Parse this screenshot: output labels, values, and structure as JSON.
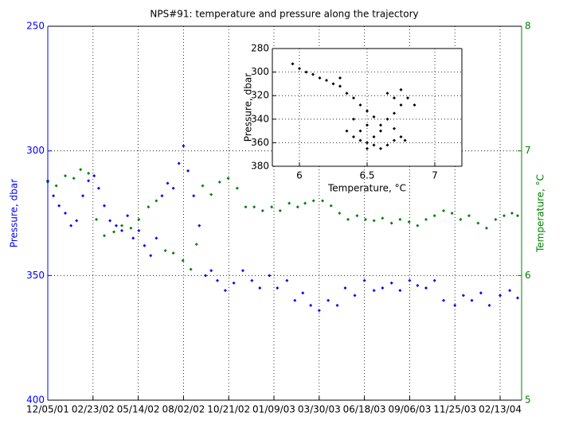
{
  "chart_data": [
    {
      "type": "scatter",
      "title": "NPS#91: temperature and pressure along the trajectory",
      "xlim": [
        "2001-12-05",
        "2004-03-22"
      ],
      "xticks": [
        {
          "value": "2001-12-05",
          "label": "12/05/01"
        },
        {
          "value": "2002-02-23",
          "label": "02/23/02"
        },
        {
          "value": "2002-05-14",
          "label": "05/14/02"
        },
        {
          "value": "2002-08-02",
          "label": "08/02/02"
        },
        {
          "value": "2002-10-21",
          "label": "10/21/02"
        },
        {
          "value": "2003-01-09",
          "label": "01/09/03"
        },
        {
          "value": "2003-03-30",
          "label": "03/30/03"
        },
        {
          "value": "2003-06-18",
          "label": "06/18/03"
        },
        {
          "value": "2003-09-06",
          "label": "09/06/03"
        },
        {
          "value": "2003-11-25",
          "label": "11/25/03"
        },
        {
          "value": "2004-02-13",
          "label": "02/13/04"
        }
      ],
      "ylabel": "Pressure, dbar",
      "ylim": [
        250,
        400
      ],
      "yticks": [
        250,
        300,
        350,
        400
      ],
      "yreverse": true,
      "ycolor": "#0000ff",
      "y2label": "Temperature, °C",
      "y2lim": [
        5,
        8
      ],
      "y2ticks": [
        5,
        6,
        7,
        8
      ],
      "y2color": "#008000",
      "grid": true,
      "series": [
        {
          "color": "#0000ff",
          "x": [
            "2001-12-05",
            "2001-12-15",
            "2001-12-25",
            "2002-01-05",
            "2002-01-15",
            "2002-01-25",
            "2002-02-05",
            "2002-02-15",
            "2002-02-25",
            "2002-03-05",
            "2002-03-15",
            "2002-03-25",
            "2002-04-05",
            "2002-04-15",
            "2002-04-25",
            "2002-05-05",
            "2002-05-15",
            "2002-05-25",
            "2002-06-05",
            "2002-06-15",
            "2002-06-25",
            "2002-07-05",
            "2002-07-15",
            "2002-07-25",
            "2002-08-02",
            "2002-08-10",
            "2002-08-20",
            "2002-08-30",
            "2002-09-10",
            "2002-09-20",
            "2002-10-01",
            "2002-10-15",
            "2002-10-30",
            "2002-11-15",
            "2002-12-01",
            "2002-12-15",
            "2003-01-01",
            "2003-01-15",
            "2003-02-01",
            "2003-02-15",
            "2003-03-01",
            "2003-03-15",
            "2003-03-30",
            "2003-04-15",
            "2003-05-01",
            "2003-05-15",
            "2003-06-01",
            "2003-06-18",
            "2003-07-05",
            "2003-07-20",
            "2003-08-05",
            "2003-08-20",
            "2003-09-06",
            "2003-09-20",
            "2003-10-05",
            "2003-10-20",
            "2003-11-05",
            "2003-11-25",
            "2003-12-10",
            "2003-12-25",
            "2004-01-10",
            "2004-01-25",
            "2004-02-13",
            "2004-03-01",
            "2004-03-15"
          ],
          "values": [
            312,
            318,
            322,
            325,
            330,
            328,
            318,
            312,
            310,
            315,
            322,
            328,
            330,
            332,
            326,
            335,
            332,
            338,
            342,
            335,
            318,
            313,
            315,
            305,
            298,
            308,
            318,
            330,
            350,
            348,
            352,
            356,
            353,
            348,
            352,
            355,
            350,
            355,
            352,
            360,
            357,
            362,
            364,
            360,
            362,
            355,
            358,
            352,
            356,
            355,
            353,
            356,
            352,
            354,
            355,
            352,
            360,
            362,
            358,
            360,
            357,
            362,
            358,
            356,
            359
          ]
        },
        {
          "color": "#008000",
          "axis": "y2",
          "x": [
            "2001-12-05",
            "2001-12-20",
            "2002-01-05",
            "2002-01-20",
            "2002-02-01",
            "2002-02-15",
            "2002-03-01",
            "2002-03-15",
            "2002-04-01",
            "2002-04-15",
            "2002-05-01",
            "2002-05-15",
            "2002-06-01",
            "2002-06-15",
            "2002-07-01",
            "2002-07-15",
            "2002-08-01",
            "2002-08-15",
            "2002-08-25",
            "2002-09-05",
            "2002-09-20",
            "2002-10-05",
            "2002-10-20",
            "2002-11-05",
            "2002-11-20",
            "2002-12-05",
            "2002-12-20",
            "2003-01-05",
            "2003-01-20",
            "2003-02-05",
            "2003-02-20",
            "2003-03-05",
            "2003-03-20",
            "2003-04-05",
            "2003-04-20",
            "2003-05-05",
            "2003-05-20",
            "2003-06-05",
            "2003-06-20",
            "2003-07-05",
            "2003-07-20",
            "2003-08-05",
            "2003-08-20",
            "2003-09-05",
            "2003-09-20",
            "2003-10-05",
            "2003-10-20",
            "2003-11-05",
            "2003-11-20",
            "2003-12-05",
            "2003-12-20",
            "2004-01-05",
            "2004-01-20",
            "2004-02-05",
            "2004-02-20",
            "2004-03-05",
            "2004-03-15"
          ],
          "values": [
            6.75,
            6.72,
            6.8,
            6.78,
            6.85,
            6.82,
            6.45,
            6.32,
            6.35,
            6.4,
            6.38,
            6.45,
            6.55,
            6.6,
            6.2,
            6.18,
            6.12,
            6.05,
            6.25,
            6.72,
            6.65,
            6.75,
            6.78,
            6.7,
            6.55,
            6.55,
            6.52,
            6.55,
            6.52,
            6.58,
            6.55,
            6.58,
            6.6,
            6.6,
            6.56,
            6.5,
            6.45,
            6.48,
            6.45,
            6.44,
            6.46,
            6.42,
            6.45,
            6.43,
            6.4,
            6.45,
            6.48,
            6.52,
            6.5,
            6.45,
            6.48,
            6.42,
            6.38,
            6.45,
            6.48,
            6.5,
            6.48
          ]
        }
      ]
    },
    {
      "type": "scatter",
      "xlabel": "Temperature, °C",
      "ylabel": "Pressure, dbar",
      "xlim": [
        5.8,
        7.2
      ],
      "xticks": [
        6,
        6.5,
        7
      ],
      "ylim": [
        280,
        380
      ],
      "yticks": [
        280,
        300,
        320,
        340,
        360,
        380
      ],
      "yreverse": true,
      "grid": true,
      "series": [
        {
          "color": "#000000",
          "x": [
            5.95,
            6.0,
            6.05,
            6.1,
            6.15,
            6.2,
            6.25,
            6.3,
            6.35,
            6.4,
            6.45,
            6.5,
            6.55,
            6.4,
            6.35,
            6.4,
            6.45,
            6.5,
            6.55,
            6.6,
            6.65,
            6.7,
            6.75,
            6.6,
            6.55,
            6.5,
            6.6,
            6.65,
            6.7,
            6.75,
            6.7,
            6.75,
            6.8,
            6.85,
            6.65,
            6.3,
            6.45,
            6.5,
            6.7,
            6.78
          ],
          "values": [
            293,
            297,
            300,
            302,
            305,
            307,
            310,
            312,
            318,
            322,
            328,
            333,
            338,
            340,
            350,
            355,
            358,
            360,
            362,
            365,
            362,
            358,
            355,
            350,
            355,
            365,
            345,
            340,
            335,
            328,
            322,
            315,
            322,
            328,
            318,
            305,
            350,
            345,
            348,
            358
          ]
        }
      ]
    }
  ]
}
